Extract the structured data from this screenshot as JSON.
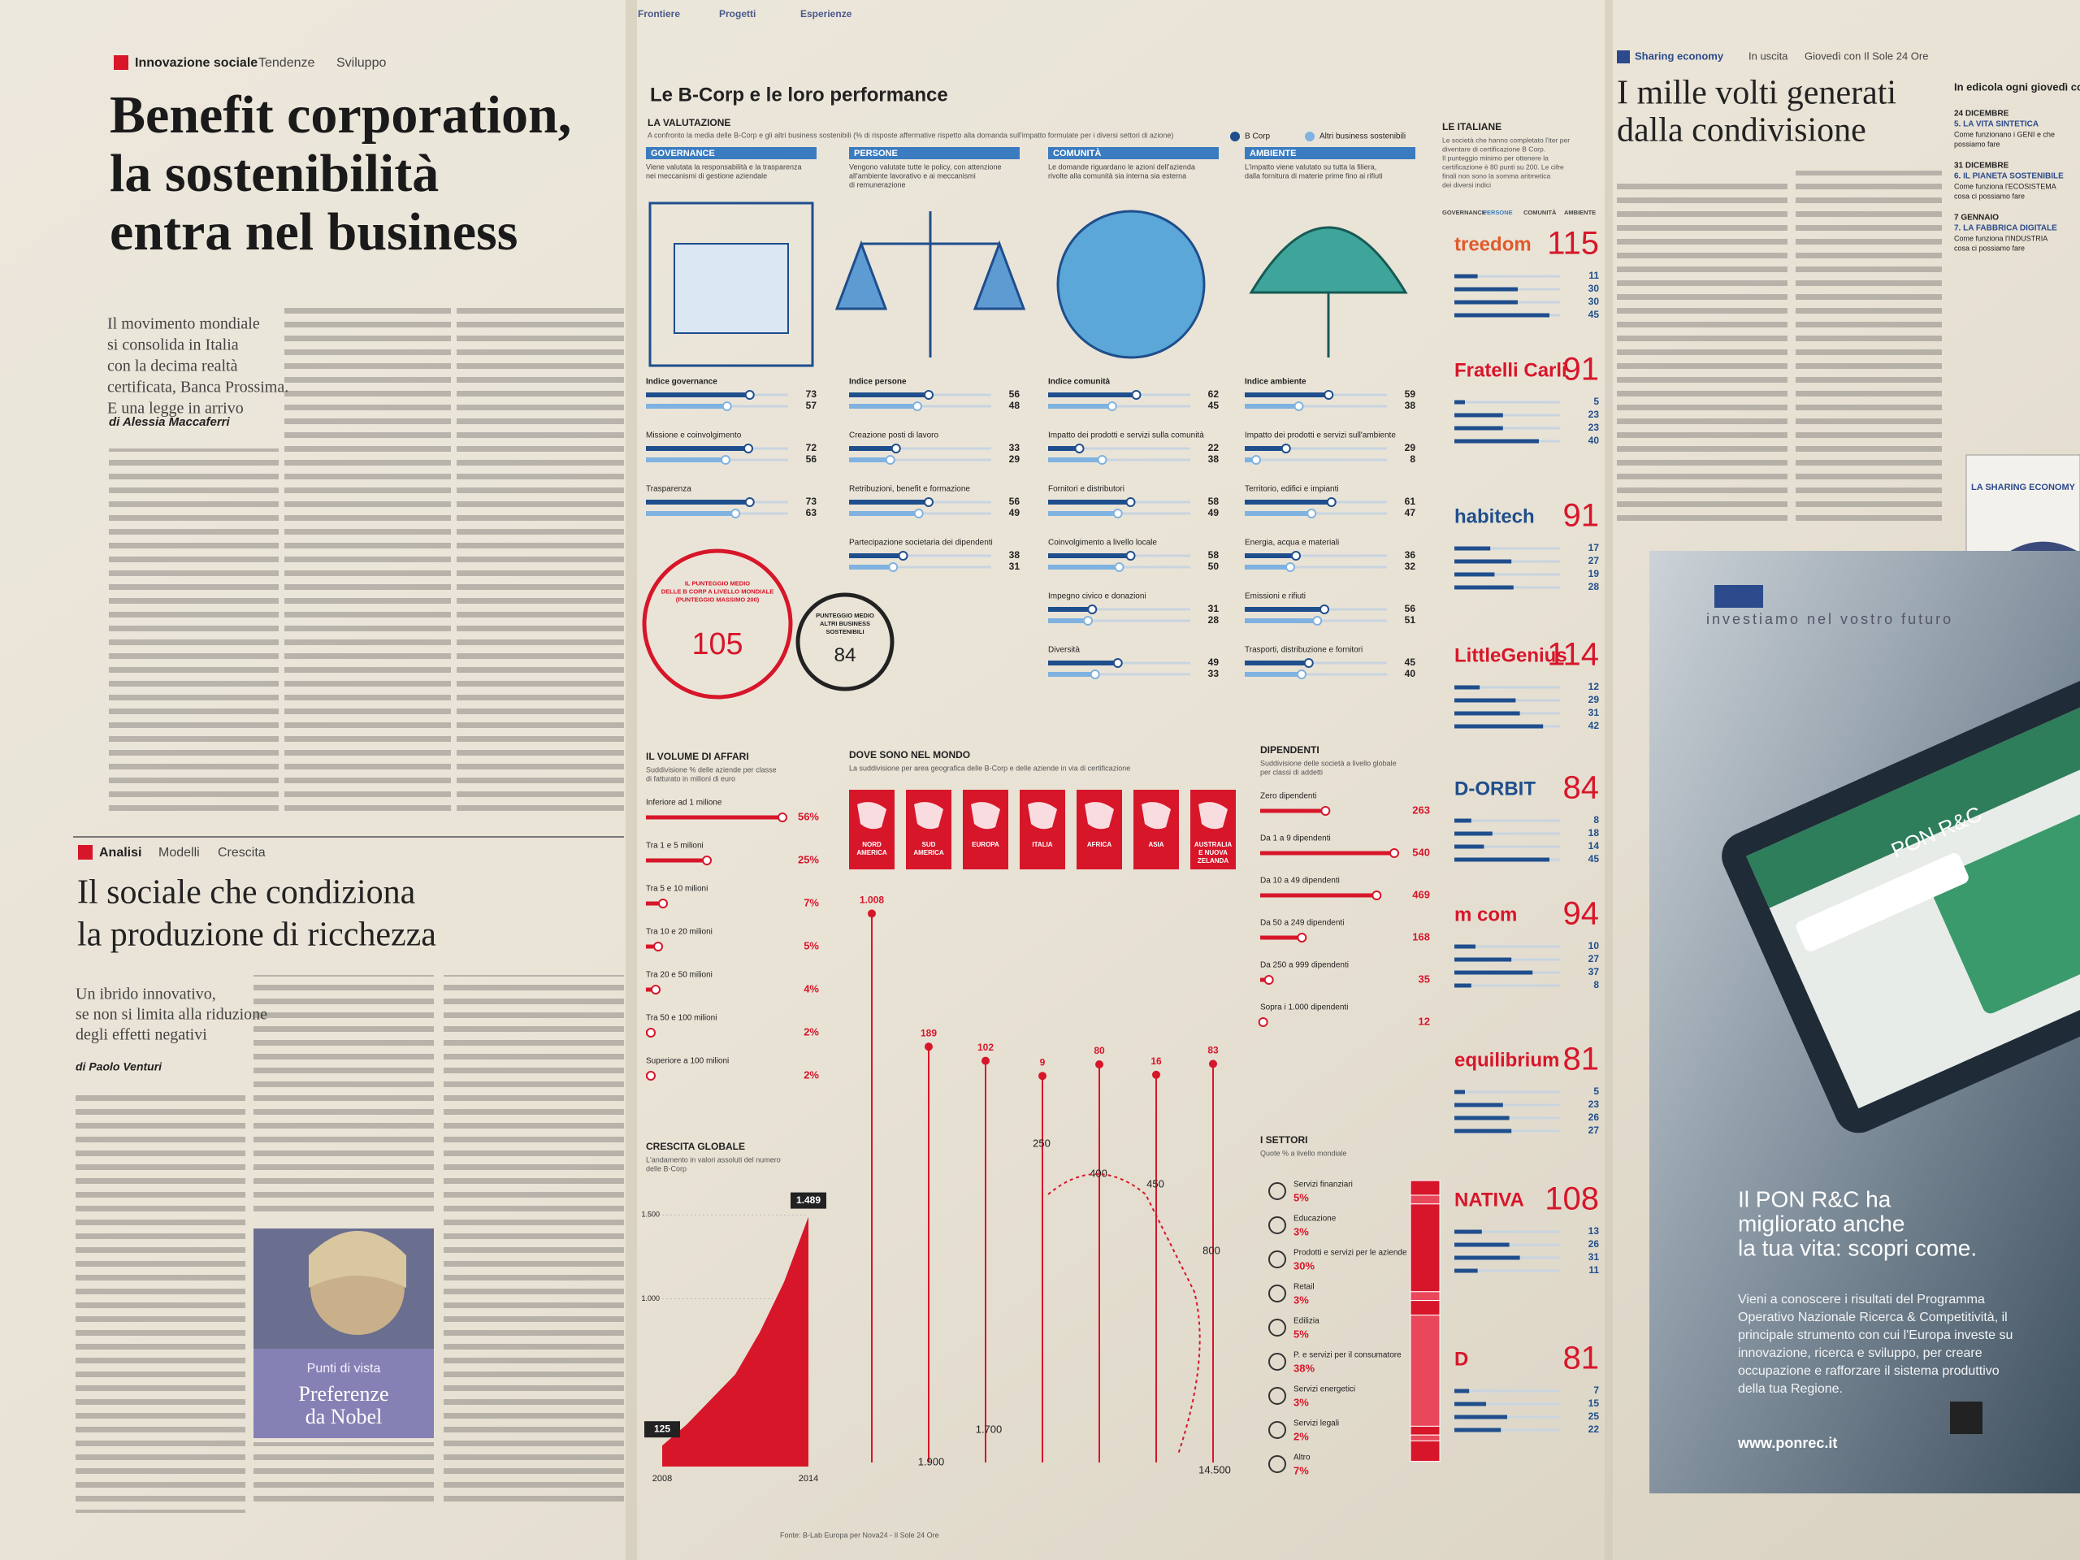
{
  "top_strip": [
    "Frontiere",
    "Progetti",
    "Esperienze"
  ],
  "left": {
    "article1": {
      "tags": [
        "Innovazione sociale",
        "Tendenze",
        "Sviluppo"
      ],
      "headline": [
        "Benefit corporation,",
        "la sostenibilità",
        "entra nel business"
      ],
      "subhead": [
        "Il movimento mondiale",
        "si consolida in Italia",
        "con la decima realtà",
        "certificata, Banca Prossima.",
        "E una legge in arrivo"
      ],
      "byline": "di Alessia Maccaferri"
    },
    "article2": {
      "tags": [
        "Analisi",
        "Modelli",
        "Crescita"
      ],
      "headline": [
        "Il sociale che condiziona",
        "la produzione di ricchezza"
      ],
      "subhead": [
        "Un ibrido innovativo,",
        "se non si limita alla riduzione",
        "degli effetti negativi"
      ],
      "byline": "di Paolo Venturi",
      "photo": {
        "kicker": "Punti di vista",
        "title": [
          "Preferenze",
          "da Nobel"
        ]
      }
    }
  },
  "infographic": {
    "title": "Le B-Corp e le loro performance",
    "valutazione": {
      "label": "LA VALUTAZIONE",
      "intro": "A confronto la media delle B-Corp e gli altri business sostenibili (% di risposte affermative rispetto alla domanda sull'impatto formulate per i diversi settori di azione)",
      "legend": [
        "B Corp",
        "Altri business sostenibili"
      ],
      "areas": [
        {
          "name": "GOVERNANCE",
          "desc": [
            "Viene valutata la responsabilità e la trasparenza",
            "nei meccanismi di gestione aziendale"
          ],
          "indices": [
            {
              "label": "Indice governance",
              "values": [
                73,
                57
              ]
            },
            {
              "label": "Missione e coinvolgimento",
              "values": [
                72,
                56
              ]
            },
            {
              "label": "Trasparenza",
              "values": [
                73,
                63
              ]
            }
          ]
        },
        {
          "name": "PERSONE",
          "desc": [
            "Vengono valutate tutte le policy, con attenzione",
            "all'ambiente lavorativo e ai meccanismi",
            "di remunerazione"
          ],
          "indices": [
            {
              "label": "Indice persone",
              "values": [
                56,
                48
              ]
            },
            {
              "label": "Creazione posti di lavoro",
              "values": [
                33,
                29
              ]
            },
            {
              "label": "Retribuzioni, benefit e formazione",
              "values": [
                56,
                49
              ]
            },
            {
              "label": "Partecipazione societaria dei dipendenti",
              "values": [
                38,
                31
              ]
            }
          ]
        },
        {
          "name": "COMUNITÀ",
          "desc": [
            "Le domande riguardano le azioni dell'azienda",
            "rivolte alla comunità sia interna sia esterna"
          ],
          "indices": [
            {
              "label": "Indice comunità",
              "values": [
                62,
                45
              ]
            },
            {
              "label": "Impatto dei prodotti e servizi sulla comunità",
              "values": [
                22,
                38
              ]
            },
            {
              "label": "Fornitori e distributori",
              "values": [
                58,
                49
              ]
            },
            {
              "label": "Coinvolgimento a livello locale",
              "values": [
                58,
                50
              ]
            },
            {
              "label": "Impegno civico e donazioni",
              "values": [
                31,
                28
              ]
            },
            {
              "label": "Diversità",
              "values": [
                49,
                33
              ]
            }
          ]
        },
        {
          "name": "AMBIENTE",
          "desc": [
            "L'impatto viene valutato su tutta la filiera,",
            "dalla fornitura di materie prime fino ai rifiuti"
          ],
          "indices": [
            {
              "label": "Indice ambiente",
              "values": [
                59,
                38
              ]
            },
            {
              "label": "Impatto dei prodotti e servizi sull'ambiente",
              "values": [
                29,
                8
              ]
            },
            {
              "label": "Territorio, edifici e impianti",
              "values": [
                61,
                47
              ]
            },
            {
              "label": "Energia, acqua e materiali",
              "values": [
                36,
                32
              ]
            },
            {
              "label": "Emissioni e rifiuti",
              "values": [
                56,
                51
              ]
            },
            {
              "label": "Trasporti, distribuzione e fornitori",
              "values": [
                45,
                40
              ]
            }
          ]
        }
      ]
    },
    "scores": [
      {
        "label": [
          "IL PUNTEGGIO MEDIO",
          "DELLE B CORP A LIVELLO MONDIALE",
          "(PUNTEGGIO MASSIMO 200)"
        ],
        "value": 105
      },
      {
        "label": [
          "PUNTEGGIO MEDIO",
          "ALTRI BUSINESS",
          "SOSTENIBILI"
        ],
        "value": 84
      }
    ],
    "volume": {
      "title": "IL VOLUME DI AFFARI",
      "subtitle": [
        "Suddivisione % delle aziende per classe",
        "di fatturato in milioni di euro"
      ],
      "rows": [
        {
          "label": "Inferiore ad 1 milione",
          "value": 56,
          "value_label": "56%"
        },
        {
          "label": "Tra 1 e 5 milioni",
          "value": 25,
          "value_label": "25%"
        },
        {
          "label": "Tra 5 e 10 milioni",
          "value": 7,
          "value_label": "7%"
        },
        {
          "label": "Tra 10 e 20 milioni",
          "value": 5,
          "value_label": "5%"
        },
        {
          "label": "Tra 20 e 50 milioni",
          "value": 4,
          "value_label": "4%"
        },
        {
          "label": "Tra 50 e 100 milioni",
          "value": 2,
          "value_label": "2%"
        },
        {
          "label": "Superiore a 100 milioni",
          "value": 2,
          "value_label": "2%"
        }
      ]
    },
    "world": {
      "title": "DOVE SONO NEL MONDO",
      "subtitle": "La suddivisione per area geografica delle B-Corp e delle aziende in via di certificazione",
      "regions": [
        {
          "name": [
            "NORD",
            "AMERICA"
          ],
          "value": 1008,
          "value_label": "1.008"
        },
        {
          "name": [
            "SUD",
            "AMERICA"
          ],
          "value": 189
        },
        {
          "name": [
            "EUROPA"
          ],
          "value": 102
        },
        {
          "name": [
            "ITALIA"
          ],
          "value": 9
        },
        {
          "name": [
            "AFRICA"
          ],
          "value": 80
        },
        {
          "name": [
            "ASIA"
          ],
          "value": 16
        },
        {
          "name": [
            "AUSTRALIA",
            "E NUOVA",
            "ZELANDA"
          ],
          "value": 83
        }
      ],
      "other_labels": [
        "1.900",
        "1.700",
        "250",
        "400",
        "450",
        "800",
        "14.500"
      ]
    },
    "growth": {
      "title": "CRESCITA GLOBALE",
      "subtitle": [
        "L'andamento in valori assoluti del numero",
        "delle B-Corp"
      ],
      "x": [
        2008,
        2009,
        2010,
        2011,
        2012,
        2013,
        2014
      ],
      "values": [
        125,
        250,
        400,
        550,
        800,
        1100,
        1489
      ],
      "value_labels": [
        "125",
        null,
        null,
        null,
        null,
        null,
        "1.489"
      ],
      "xlim": [
        2008,
        2014
      ],
      "xticks": [
        2008,
        2014
      ],
      "ylim": [
        0,
        1550
      ],
      "yticks": [
        {
          "value": 1000,
          "label": "1.000"
        },
        {
          "value": 1500,
          "label": "1.500"
        }
      ],
      "color": "#d7162a"
    },
    "employees": {
      "title": "DIPENDENTI",
      "subtitle": [
        "Suddivisione delle società a livello globale",
        "per classi di addetti"
      ],
      "rows": [
        {
          "label": "Zero dipendenti",
          "value": 263
        },
        {
          "label": "Da 1 a 9 dipendenti",
          "value": 540
        },
        {
          "label": "Da 10 a 49 dipendenti",
          "value": 469
        },
        {
          "label": "Da 50 a 249 dipendenti",
          "value": 168
        },
        {
          "label": "Da 250 a 999 dipendenti",
          "value": 35
        },
        {
          "label": "Sopra i 1.000 dipendenti",
          "value": 12
        }
      ]
    },
    "sectors": {
      "title": "I SETTORI",
      "subtitle": "Quote % a livello mondiale",
      "rows": [
        {
          "label": "Servizi finanziari",
          "value": 5,
          "value_label": "5%"
        },
        {
          "label": "Educazione",
          "value": 3,
          "value_label": "3%"
        },
        {
          "label": "Prodotti e servizi per le aziende",
          "value": 30,
          "value_label": "30%"
        },
        {
          "label": "Retail",
          "value": 3,
          "value_label": "3%"
        },
        {
          "label": "Edilizia",
          "value": 5,
          "value_label": "5%"
        },
        {
          "label": "P. e servizi per il consumatore",
          "value": 38,
          "value_label": "38%"
        },
        {
          "label": "Servizi energetici",
          "value": 3,
          "value_label": "3%"
        },
        {
          "label": "Servizi legali",
          "value": 2,
          "value_label": "2%"
        },
        {
          "label": "Altro",
          "value": 7,
          "value_label": "7%"
        }
      ]
    },
    "italian": {
      "title": "LE ITALIANE",
      "desc": [
        "Le società che hanno completato l'iter per",
        "diventare di certificazione B Corp.",
        "Il punteggio minimo per ottenere la",
        "certificazione è 80 punti su 200. Le cifre",
        "finali non sono la somma aritmetica",
        "dei diversi indici"
      ],
      "headers": [
        "GOVERNANCE",
        "PERSONE",
        "COMUNITÀ",
        "AMBIENTE"
      ],
      "companies": [
        {
          "name": "treedom",
          "score": 115,
          "values": [
            11,
            30,
            30,
            45
          ]
        },
        {
          "name": "Fratelli Carli",
          "score": 91,
          "values": [
            5,
            23,
            23,
            40
          ]
        },
        {
          "name": "habitech",
          "score": 91,
          "values": [
            17,
            27,
            19,
            28
          ]
        },
        {
          "name": "LittleGenius",
          "score": 114,
          "values": [
            12,
            29,
            31,
            42
          ]
        },
        {
          "name": "D-ORBIT",
          "score": 84,
          "values": [
            8,
            18,
            14,
            45
          ]
        },
        {
          "name": "m com",
          "score": 94,
          "values": [
            10,
            27,
            37,
            8
          ]
        },
        {
          "name": "equilibrium",
          "score": 81,
          "values": [
            5,
            23,
            26,
            27
          ]
        },
        {
          "name": "NATIVA",
          "score": 108,
          "values": [
            13,
            26,
            31,
            11
          ]
        },
        {
          "name": "D",
          "score": 81,
          "values": [
            7,
            15,
            25,
            22
          ]
        }
      ]
    },
    "source": "Fonte: B-Lab Europa per Nova24 - Il Sole 24 Ore"
  },
  "right": {
    "tags": [
      "Sharing economy",
      "In uscita",
      "Giovedì con Il Sole 24 Ore"
    ],
    "headline": [
      "I mille volti generati",
      "dalla condivisione"
    ],
    "sidebar": {
      "title": "In edicola ogni giovedì co",
      "items": [
        {
          "date": "24 DICEMBRE",
          "title": "5. LA VITA SINTETICA",
          "desc": [
            "Come funzionano i GENI e che",
            "possiamo fare"
          ]
        },
        {
          "date": "31 DICEMBRE",
          "title": "6. IL PIANETA SOSTENIBILE",
          "desc": [
            "Come funziona l'ECOSISTEMA",
            "cosa ci possiamo fare"
          ]
        },
        {
          "date": "7 GENNAIO",
          "title": "7. LA FABBRICA DIGITALE",
          "desc": [
            "Come funziona l'INDUSTRIA",
            "cosa ci possiamo fare"
          ]
        }
      ],
      "cover": "LA SHARING ECONOMY"
    },
    "ad": {
      "slogan": "investiamo nel vostro futuro",
      "app": "PON R&C",
      "headline": [
        "Il PON R&C ha",
        "migliorato anche",
        "la tua vita: scopri come."
      ],
      "body": [
        "Vieni a conoscere i risultati del Programma",
        "Operativo Nazionale Ricerca & Competitività, il",
        "principale strumento con cui l'Europa investe su",
        "innovazione, ricerca e sviluppo, per creare",
        "occupazione e rafforzare il sistema produttivo",
        "della tua Regione."
      ],
      "url": "www.ponrec.it"
    }
  }
}
